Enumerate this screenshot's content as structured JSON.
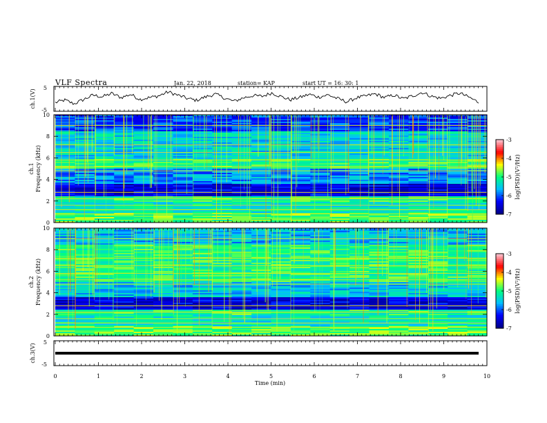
{
  "header": {
    "title": "VLF Spectra",
    "date": "Jan. 22, 2018",
    "station": "station= KAP",
    "start": "start  UT =   16: 30: 1"
  },
  "chart_data": [
    {
      "type": "line",
      "panel": "ch1-waveform",
      "ylabel": "ch.1(V)",
      "ylim": [
        -5,
        5
      ],
      "yticks": [
        "5",
        "-5"
      ],
      "xlim": [
        0,
        10
      ],
      "series": [
        {
          "values": [
            -1.5,
            -0.5,
            -2.0,
            -0.3,
            1.5,
            0.8,
            2.2,
            0.5,
            1.8,
            -0.2,
            0.5,
            1.2,
            2.8,
            1.5,
            0.2,
            -0.6,
            0.8,
            1.9,
            0.3,
            -1.0,
            0.4,
            1.3,
            1.0,
            2.4,
            0.9,
            -0.4,
            0.6,
            1.8,
            0.7,
            1.6,
            0.1,
            -1.2,
            0.4,
            1.1,
            2.0,
            0.5,
            1.5,
            0.0,
            1.2,
            2.6,
            1.0,
            0.2,
            1.4,
            2.3,
            0.6,
            -1.4
          ]
        }
      ]
    },
    {
      "type": "heatmap",
      "panel": "ch1-spectrogram",
      "ylabel": "ch.1\nFrequency  (kHz)",
      "xlim": [
        0,
        10
      ],
      "ylim": [
        0,
        10
      ],
      "yticks": [
        "0",
        "2",
        "4",
        "6",
        "8",
        "10"
      ],
      "colorbar": {
        "label": "log(PSD)(V²/Hz)",
        "range": [
          -7,
          -3
        ],
        "ticks": [
          "-3",
          "-4",
          "-5",
          "-6",
          "-7"
        ]
      }
    },
    {
      "type": "heatmap",
      "panel": "ch2-spectrogram",
      "ylabel": "ch.2\nFrequency  (kHz)",
      "xlim": [
        0,
        10
      ],
      "ylim": [
        0,
        10
      ],
      "yticks": [
        "0",
        "2",
        "4",
        "6",
        "8",
        "10"
      ],
      "colorbar": {
        "label": "log(PSD)(V²/Hz)",
        "range": [
          -7,
          -3
        ],
        "ticks": [
          "-3",
          "-4",
          "-5",
          "-6",
          "-7"
        ]
      }
    },
    {
      "type": "line",
      "panel": "ch3-waveform",
      "ylabel": "ch.3(V)",
      "ylim": [
        -5,
        5
      ],
      "yticks": [
        "5",
        "-5"
      ],
      "xlim": [
        0,
        10
      ],
      "series": [
        {
          "values": [
            0,
            0
          ]
        }
      ]
    }
  ],
  "xaxis": {
    "label": "Time  (min)",
    "ticks": [
      "0",
      "1",
      "2",
      "3",
      "4",
      "5",
      "6",
      "7",
      "8",
      "9",
      "10"
    ]
  },
  "colors": {
    "line": "#000000",
    "frame": "#000000",
    "colormap": [
      "#00008b",
      "#0000ff",
      "#00bfff",
      "#00ff7f",
      "#ffff00",
      "#ff0000",
      "#ffc0cb"
    ]
  }
}
